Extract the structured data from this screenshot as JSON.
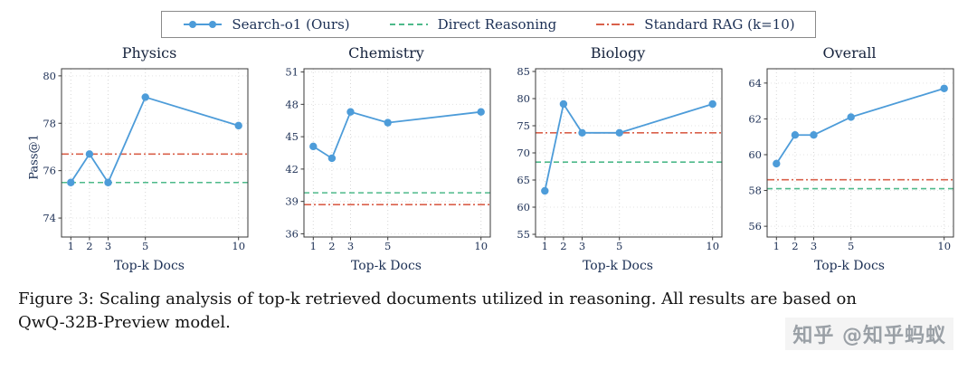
{
  "legend": {
    "items": [
      {
        "label": "Search-o1 (Ours)",
        "color": "#4d9cd9",
        "style": "solid-markers"
      },
      {
        "label": "Direct Reasoning",
        "color": "#4db98a",
        "style": "dashed"
      },
      {
        "label": "Standard RAG (k=10)",
        "color": "#d9604a",
        "style": "dashdot"
      }
    ]
  },
  "chart_data": [
    {
      "type": "line",
      "title": "Physics",
      "xlabel": "Top-k Docs",
      "ylabel": "Pass@1",
      "x": [
        1,
        2,
        3,
        5,
        10
      ],
      "xticks": [
        1,
        2,
        3,
        5,
        10
      ],
      "xlim": [
        0.5,
        10.5
      ],
      "ylim": [
        73.2,
        80.3
      ],
      "yticks": [
        74,
        76,
        78,
        80
      ],
      "series": [
        {
          "name": "Search-o1 (Ours)",
          "color": "#4d9cd9",
          "values": [
            75.5,
            76.7,
            75.5,
            79.1,
            77.9
          ]
        }
      ],
      "hlines": [
        {
          "name": "Direct Reasoning",
          "value": 75.5,
          "color": "#4db98a",
          "dash": "dashed"
        },
        {
          "name": "Standard RAG (k=10)",
          "value": 76.7,
          "color": "#d9604a",
          "dash": "dashdot"
        }
      ]
    },
    {
      "type": "line",
      "title": "Chemistry",
      "xlabel": "Top-k Docs",
      "ylabel": "",
      "x": [
        1,
        2,
        3,
        5,
        10
      ],
      "xticks": [
        1,
        2,
        3,
        5,
        10
      ],
      "xlim": [
        0.5,
        10.5
      ],
      "ylim": [
        35.7,
        51.3
      ],
      "yticks": [
        36,
        39,
        42,
        45,
        48,
        51
      ],
      "series": [
        {
          "name": "Search-o1 (Ours)",
          "color": "#4d9cd9",
          "values": [
            44.1,
            43.0,
            47.3,
            46.3,
            47.3
          ]
        }
      ],
      "hlines": [
        {
          "name": "Direct Reasoning",
          "value": 39.8,
          "color": "#4db98a",
          "dash": "dashed"
        },
        {
          "name": "Standard RAG (k=10)",
          "value": 38.7,
          "color": "#d9604a",
          "dash": "dashdot"
        }
      ]
    },
    {
      "type": "line",
      "title": "Biology",
      "xlabel": "Top-k Docs",
      "ylabel": "",
      "x": [
        1,
        2,
        3,
        5,
        10
      ],
      "xticks": [
        1,
        2,
        3,
        5,
        10
      ],
      "xlim": [
        0.5,
        10.5
      ],
      "ylim": [
        54.5,
        85.5
      ],
      "yticks": [
        55,
        60,
        65,
        70,
        75,
        80,
        85
      ],
      "series": [
        {
          "name": "Search-o1 (Ours)",
          "color": "#4d9cd9",
          "values": [
            63.0,
            79.0,
            73.7,
            73.7,
            79.0
          ]
        }
      ],
      "hlines": [
        {
          "name": "Direct Reasoning",
          "value": 68.3,
          "color": "#4db98a",
          "dash": "dashed"
        },
        {
          "name": "Standard RAG (k=10)",
          "value": 73.7,
          "color": "#d9604a",
          "dash": "dashdot"
        }
      ]
    },
    {
      "type": "line",
      "title": "Overall",
      "xlabel": "Top-k Docs",
      "ylabel": "",
      "x": [
        1,
        2,
        3,
        5,
        10
      ],
      "xticks": [
        1,
        2,
        3,
        5,
        10
      ],
      "xlim": [
        0.5,
        10.5
      ],
      "ylim": [
        55.4,
        64.8
      ],
      "yticks": [
        56,
        58,
        60,
        62,
        64
      ],
      "series": [
        {
          "name": "Search-o1 (Ours)",
          "color": "#4d9cd9",
          "values": [
            59.5,
            61.1,
            61.1,
            62.1,
            63.7
          ]
        }
      ],
      "hlines": [
        {
          "name": "Direct Reasoning",
          "value": 58.1,
          "color": "#4db98a",
          "dash": "dashed"
        },
        {
          "name": "Standard RAG (k=10)",
          "value": 58.6,
          "color": "#d9604a",
          "dash": "dashdot"
        }
      ]
    }
  ],
  "caption": "Figure 3: Scaling analysis of top-k retrieved documents utilized in reasoning. All results are based on QwQ-32B-Preview model.",
  "watermark": "知乎 @知乎蚂蚁"
}
